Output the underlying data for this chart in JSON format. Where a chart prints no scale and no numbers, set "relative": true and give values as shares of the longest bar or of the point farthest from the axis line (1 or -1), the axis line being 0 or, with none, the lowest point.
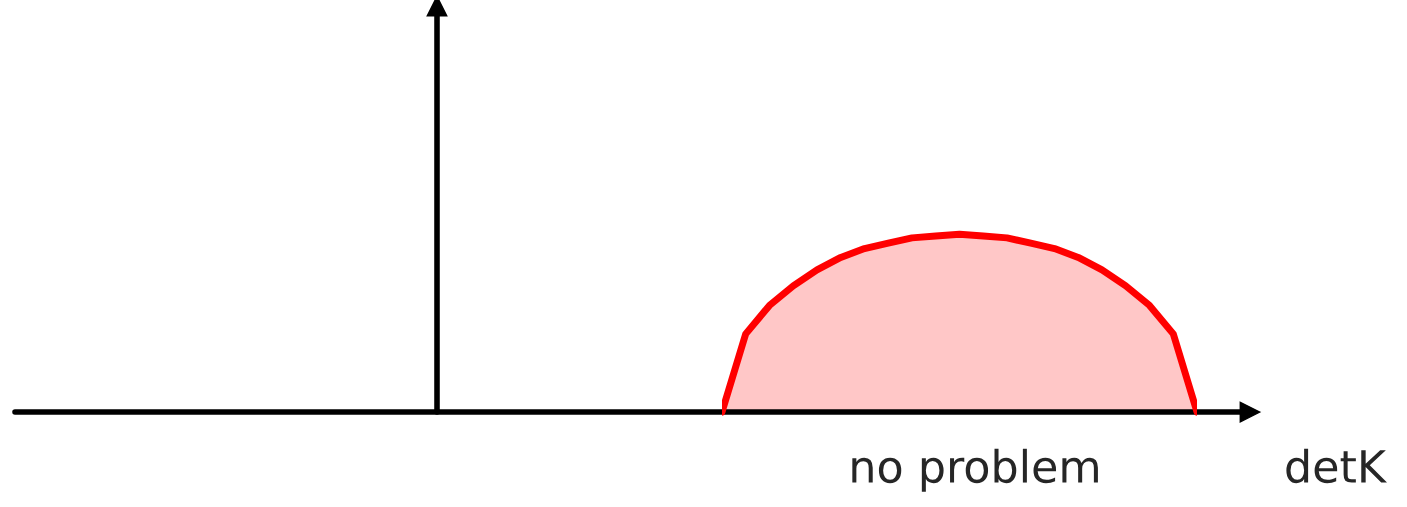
{
  "chart_data": {
    "type": "area",
    "relative": true,
    "xlabel": "detK",
    "annotations": [
      "no problem"
    ],
    "categories": [
      null,
      null,
      null,
      null,
      null,
      null,
      null,
      null,
      null,
      null,
      null,
      null,
      null,
      null,
      null,
      null,
      null,
      null,
      null,
      null,
      null
    ],
    "series": [
      {
        "color": "#ff0000",
        "values": [
          0,
          0.44,
          0.6,
          0.71,
          0.8,
          0.87,
          0.92,
          0.95,
          0.98,
          0.99,
          1,
          0.99,
          0.98,
          0.95,
          0.92,
          0.87,
          0.8,
          0.71,
          0.6,
          0.44,
          0
        ]
      }
    ]
  }
}
